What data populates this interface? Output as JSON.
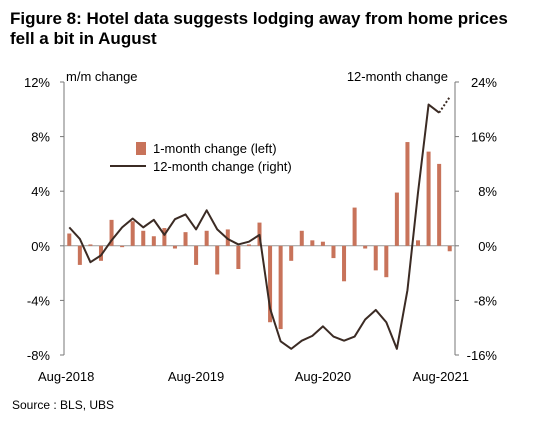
{
  "title": "Figure 8: Hotel data suggests lodging away from home prices fell a bit in August",
  "source": "Source : BLS, UBS",
  "chart_data": {
    "type": "bar+line",
    "title": "Figure 8: Hotel data suggests lodging away from home prices fell a bit in August",
    "left_axis_label": "m/m change",
    "right_axis_label": "12-month change",
    "left_ylim": [
      -8,
      12
    ],
    "right_ylim": [
      -16,
      24
    ],
    "left_ticks": [
      "12%",
      "8%",
      "4%",
      "0%",
      "-4%",
      "-8%"
    ],
    "right_ticks": [
      "24%",
      "16%",
      "8%",
      "0%",
      "-8%",
      "-16%"
    ],
    "x_tick_labels": [
      "Aug-2018",
      "Aug-2019",
      "Aug-2020",
      "Aug-2021"
    ],
    "legend": {
      "bar": "1-month change (left)",
      "line": "12-month change (right)"
    },
    "colors": {
      "bar": "#C8735A",
      "line": "#3B2B24"
    },
    "months": [
      "Aug-2018",
      "Sep-2018",
      "Oct-2018",
      "Nov-2018",
      "Dec-2018",
      "Jan-2019",
      "Feb-2019",
      "Mar-2019",
      "Apr-2019",
      "May-2019",
      "Jun-2019",
      "Jul-2019",
      "Aug-2019",
      "Sep-2019",
      "Oct-2019",
      "Nov-2019",
      "Dec-2019",
      "Jan-2020",
      "Feb-2020",
      "Mar-2020",
      "Apr-2020",
      "May-2020",
      "Jun-2020",
      "Jul-2020",
      "Aug-2020",
      "Sep-2020",
      "Oct-2020",
      "Nov-2020",
      "Dec-2020",
      "Jan-2021",
      "Feb-2021",
      "Mar-2021",
      "Apr-2021",
      "May-2021",
      "Jun-2021",
      "Jul-2021",
      "Aug-2021"
    ],
    "one_month_change": [
      0.9,
      -1.4,
      0.1,
      -1.1,
      1.9,
      -0.1,
      1.8,
      1.1,
      0.7,
      1.3,
      -0.2,
      1.0,
      -1.4,
      1.1,
      -2.1,
      1.2,
      -1.7,
      0.1,
      1.7,
      -5.6,
      -6.1,
      -1.1,
      1.1,
      0.4,
      0.3,
      -0.9,
      -2.6,
      2.8,
      -0.2,
      -1.8,
      -2.3,
      3.9,
      7.6,
      0.4,
      6.9,
      6.0,
      -0.4
    ],
    "twelve_month_change": [
      2.7,
      1.0,
      -2.4,
      -1.4,
      0.8,
      2.7,
      4.0,
      2.7,
      3.8,
      1.6,
      3.9,
      4.6,
      2.4,
      5.2,
      2.4,
      1.0,
      0.2,
      0.6,
      1.6,
      -9.2,
      -14.0,
      -15.1,
      -13.9,
      -13.2,
      -11.8,
      -13.3,
      -13.9,
      -13.3,
      -10.8,
      -9.4,
      -11.2,
      -15.1,
      -6.5,
      7.8,
      20.7,
      19.5,
      21.8
    ]
  }
}
